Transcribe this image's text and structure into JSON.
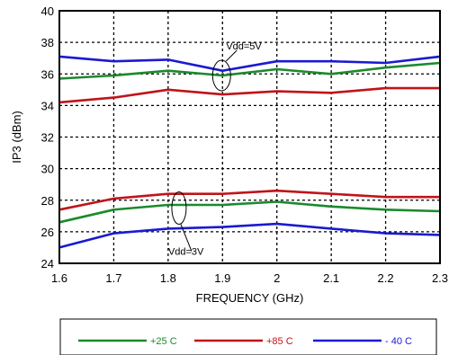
{
  "chart_data": {
    "type": "line",
    "xlabel": "FREQUENCY (GHz)",
    "ylabel": "IP3 (dBm)",
    "xlim": [
      1.6,
      2.3
    ],
    "ylim": [
      24,
      40
    ],
    "xticks": [
      "1.6",
      "1.7",
      "1.8",
      "1.9",
      "2",
      "2.1",
      "2.2",
      "2.3"
    ],
    "yticks": [
      "24",
      "26",
      "28",
      "30",
      "32",
      "34",
      "36",
      "38",
      "40"
    ],
    "grid": true,
    "legend_position": "bottom",
    "series": [
      {
        "name": "+25 C",
        "group": "Vdd=5V",
        "color": "#1a8a2e",
        "x": [
          1.6,
          1.7,
          1.8,
          1.9,
          2.0,
          2.1,
          2.2,
          2.3
        ],
        "y": [
          35.7,
          35.9,
          36.2,
          35.9,
          36.3,
          36.0,
          36.4,
          36.7
        ]
      },
      {
        "name": "+85 C",
        "group": "Vdd=5V",
        "color": "#c0141a",
        "x": [
          1.6,
          1.7,
          1.8,
          1.9,
          2.0,
          2.1,
          2.2,
          2.3
        ],
        "y": [
          34.2,
          34.5,
          35.0,
          34.7,
          34.9,
          34.8,
          35.1,
          35.1
        ]
      },
      {
        "name": "- 40 C",
        "group": "Vdd=5V",
        "color": "#1a1ad0",
        "x": [
          1.6,
          1.7,
          1.8,
          1.9,
          2.0,
          2.1,
          2.2,
          2.3
        ],
        "y": [
          37.1,
          36.8,
          36.9,
          36.2,
          36.8,
          36.8,
          36.7,
          37.1
        ]
      },
      {
        "name": "+25 C",
        "group": "Vdd=3V",
        "color": "#1a8a2e",
        "x": [
          1.6,
          1.7,
          1.8,
          1.9,
          2.0,
          2.1,
          2.2,
          2.3
        ],
        "y": [
          26.6,
          27.4,
          27.7,
          27.7,
          27.9,
          27.6,
          27.4,
          27.3
        ]
      },
      {
        "name": "+85 C",
        "group": "Vdd=3V",
        "color": "#c0141a",
        "x": [
          1.6,
          1.7,
          1.8,
          1.9,
          2.0,
          2.1,
          2.2,
          2.3
        ],
        "y": [
          27.4,
          28.1,
          28.4,
          28.4,
          28.6,
          28.4,
          28.2,
          28.2
        ]
      },
      {
        "name": "- 40 C",
        "group": "Vdd=3V",
        "color": "#1a1ad0",
        "x": [
          1.6,
          1.7,
          1.8,
          1.9,
          2.0,
          2.1,
          2.2,
          2.3
        ],
        "y": [
          25.0,
          25.9,
          26.2,
          26.3,
          26.5,
          26.2,
          25.9,
          25.8
        ]
      }
    ],
    "annotations": [
      {
        "text": "Vdd=5V",
        "x": 1.9,
        "y": 35.9
      },
      {
        "text": "Vdd=3V",
        "x": 1.82,
        "y": 27.5
      }
    ],
    "legend": [
      {
        "label": "+25 C",
        "color": "#1a8a2e"
      },
      {
        "label": "+85 C",
        "color": "#c0141a"
      },
      {
        "label": "- 40 C",
        "color": "#1a1ad0"
      }
    ]
  }
}
